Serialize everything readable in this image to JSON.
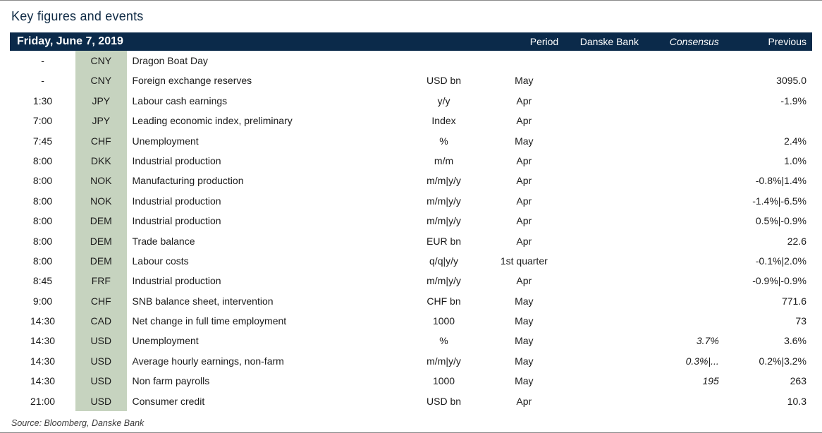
{
  "title": "Key figures and events",
  "columns": {
    "date": "Friday, June 7, 2019",
    "period": "Period",
    "danske": "Danske Bank",
    "consensus": "Consensus",
    "previous": "Previous"
  },
  "rows": [
    {
      "time": "-",
      "ccy": "CNY",
      "event": "Dragon Boat Day",
      "unit": "",
      "period": "",
      "db": "",
      "cons": "",
      "prev": ""
    },
    {
      "time": "-",
      "ccy": "CNY",
      "event": "Foreign exchange reserves",
      "unit": "USD bn",
      "period": "May",
      "db": "",
      "cons": "",
      "prev": "3095.0"
    },
    {
      "time": "1:30",
      "ccy": "JPY",
      "event": "Labour cash earnings",
      "unit": "y/y",
      "period": "Apr",
      "db": "",
      "cons": "",
      "prev": "-1.9%"
    },
    {
      "time": "7:00",
      "ccy": "JPY",
      "event": "Leading economic index, preliminary",
      "unit": "Index",
      "period": "Apr",
      "db": "",
      "cons": "",
      "prev": ""
    },
    {
      "time": "7:45",
      "ccy": "CHF",
      "event": "Unemployment",
      "unit": "%",
      "period": "May",
      "db": "",
      "cons": "",
      "prev": "2.4%"
    },
    {
      "time": "8:00",
      "ccy": "DKK",
      "event": "Industrial production",
      "unit": "m/m",
      "period": "Apr",
      "db": "",
      "cons": "",
      "prev": "1.0%"
    },
    {
      "time": "8:00",
      "ccy": "NOK",
      "event": "Manufacturing production",
      "unit": "m/m|y/y",
      "period": "Apr",
      "db": "",
      "cons": "",
      "prev": "-0.8%|1.4%"
    },
    {
      "time": "8:00",
      "ccy": "NOK",
      "event": "Industrial production",
      "unit": "m/m|y/y",
      "period": "Apr",
      "db": "",
      "cons": "",
      "prev": "-1.4%|-6.5%"
    },
    {
      "time": "8:00",
      "ccy": "DEM",
      "event": "Industrial production",
      "unit": "m/m|y/y",
      "period": "Apr",
      "db": "",
      "cons": "",
      "prev": "0.5%|-0.9%"
    },
    {
      "time": "8:00",
      "ccy": "DEM",
      "event": "Trade balance",
      "unit": "EUR bn",
      "period": "Apr",
      "db": "",
      "cons": "",
      "prev": "22.6"
    },
    {
      "time": "8:00",
      "ccy": "DEM",
      "event": "Labour costs",
      "unit": "q/q|y/y",
      "period": "1st quarter",
      "db": "",
      "cons": "",
      "prev": "-0.1%|2.0%"
    },
    {
      "time": "8:45",
      "ccy": "FRF",
      "event": "Industrial production",
      "unit": "m/m|y/y",
      "period": "Apr",
      "db": "",
      "cons": "",
      "prev": "-0.9%|-0.9%"
    },
    {
      "time": "9:00",
      "ccy": "CHF",
      "event": "SNB balance sheet, intervention",
      "unit": "CHF bn",
      "period": "May",
      "db": "",
      "cons": "",
      "prev": "771.6"
    },
    {
      "time": "14:30",
      "ccy": "CAD",
      "event": "Net change in full time employment",
      "unit": "1000",
      "period": "May",
      "db": "",
      "cons": "",
      "prev": "73"
    },
    {
      "time": "14:30",
      "ccy": "USD",
      "event": "Unemployment",
      "unit": "%",
      "period": "May",
      "db": "",
      "cons": "3.7%",
      "prev": "3.6%"
    },
    {
      "time": "14:30",
      "ccy": "USD",
      "event": "Average hourly earnings, non-farm",
      "unit": "m/m|y/y",
      "period": "May",
      "db": "",
      "cons": "0.3%|...",
      "prev": "0.2%|3.2%"
    },
    {
      "time": "14:30",
      "ccy": "USD",
      "event": "Non farm payrolls",
      "unit": "1000",
      "period": "May",
      "db": "",
      "cons": "195",
      "prev": "263"
    },
    {
      "time": "21:00",
      "ccy": "USD",
      "event": "Consumer credit",
      "unit": "USD bn",
      "period": "Apr",
      "db": "",
      "cons": "",
      "prev": "10.3"
    }
  ],
  "source": "Source: Bloomberg, Danske Bank",
  "colors": {
    "header_bg": "#0b2a4a",
    "header_fg": "#ffffff",
    "ccy_bg": "#c6d3bf",
    "border": "#8a8a8a",
    "text": "#1a1a1a",
    "title": "#0f2a44"
  }
}
